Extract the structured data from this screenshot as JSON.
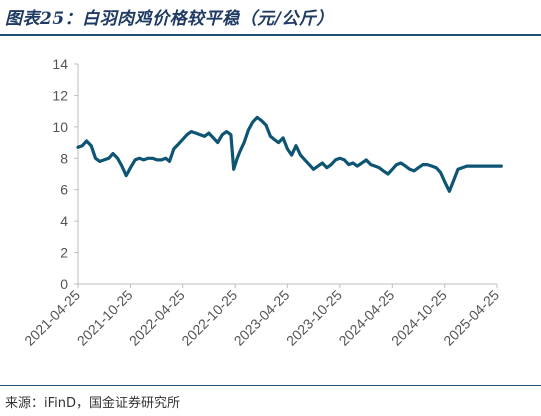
{
  "header": {
    "title": "图表25：白羽肉鸡价格较平稳（元/公斤）"
  },
  "footer": {
    "source": "来源：iFinD，国金证券研究所"
  },
  "colors": {
    "line": "#0e5473",
    "rule": "#1f4f73",
    "axis": "#bfbfbf"
  },
  "chart_data": {
    "type": "line",
    "title": "白羽肉鸡价格较平稳（元/公斤）",
    "ylim": [
      0,
      14
    ],
    "yticks": [
      "0",
      "2",
      "4",
      "6",
      "8",
      "10",
      "12",
      "14"
    ],
    "xticks": [
      "2021-04-25",
      "2021-10-25",
      "2022-04-25",
      "2022-10-25",
      "2023-04-25",
      "2023-10-25",
      "2024-04-25",
      "2024-10-25",
      "2025-04-25"
    ],
    "grid": false,
    "legend": "none",
    "series": [
      {
        "x": [
          "2021-04-25",
          "2021-05-10",
          "2021-05-25",
          "2021-06-10",
          "2021-06-25",
          "2021-07-10",
          "2021-07-25",
          "2021-08-10",
          "2021-08-25",
          "2021-09-10",
          "2021-09-25",
          "2021-10-10",
          "2021-10-25",
          "2021-11-10",
          "2021-11-25",
          "2021-12-10",
          "2021-12-25",
          "2022-01-10",
          "2022-01-25",
          "2022-02-10",
          "2022-02-25",
          "2022-03-10",
          "2022-03-25",
          "2022-04-10",
          "2022-04-25",
          "2022-05-10",
          "2022-05-25",
          "2022-06-10",
          "2022-06-25",
          "2022-07-10",
          "2022-07-25",
          "2022-08-10",
          "2022-08-25",
          "2022-09-10",
          "2022-09-25",
          "2022-10-10",
          "2022-10-20",
          "2022-11-01",
          "2022-11-10",
          "2022-11-25",
          "2022-12-10",
          "2022-12-25",
          "2023-01-10",
          "2023-01-25",
          "2023-02-10",
          "2023-02-25",
          "2023-03-10",
          "2023-03-25",
          "2023-04-10",
          "2023-04-25",
          "2023-05-10",
          "2023-05-25",
          "2023-06-10",
          "2023-06-25",
          "2023-07-10",
          "2023-07-25",
          "2023-08-10",
          "2023-08-25",
          "2023-09-10",
          "2023-09-25",
          "2023-10-10",
          "2023-10-25",
          "2023-11-10",
          "2023-11-25",
          "2023-12-10",
          "2023-12-25",
          "2024-01-10",
          "2024-01-25",
          "2024-02-10",
          "2024-02-25",
          "2024-03-10",
          "2024-03-25",
          "2024-04-10",
          "2024-04-25",
          "2024-05-10",
          "2024-05-25",
          "2024-06-10",
          "2024-06-25",
          "2024-07-10",
          "2024-07-25",
          "2024-08-10",
          "2024-08-25",
          "2024-09-10",
          "2024-09-25",
          "2024-10-10",
          "2024-10-25",
          "2024-11-10",
          "2024-11-25",
          "2024-12-10",
          "2024-12-25",
          "2025-01-10",
          "2025-01-25",
          "2025-02-10",
          "2025-02-25",
          "2025-03-10",
          "2025-03-25",
          "2025-04-10",
          "2025-04-25",
          "2025-05-10"
        ],
        "values": [
          8.7,
          8.8,
          9.1,
          8.8,
          8.0,
          7.8,
          7.9,
          8.0,
          8.3,
          8.0,
          7.5,
          6.9,
          7.4,
          7.9,
          8.0,
          7.9,
          8.0,
          8.0,
          7.9,
          7.9,
          8.0,
          7.8,
          8.6,
          8.9,
          9.2,
          9.5,
          9.7,
          9.6,
          9.5,
          9.4,
          9.6,
          9.3,
          9.0,
          9.5,
          9.7,
          9.5,
          7.3,
          8.0,
          8.4,
          9.0,
          9.8,
          10.3,
          10.6,
          10.4,
          10.1,
          9.4,
          9.2,
          9.0,
          9.3,
          8.6,
          8.2,
          8.8,
          8.2,
          7.9,
          7.6,
          7.3,
          7.5,
          7.7,
          7.4,
          7.6,
          7.9,
          8.0,
          7.9,
          7.6,
          7.7,
          7.5,
          7.7,
          7.9,
          7.6,
          7.5,
          7.4,
          7.2,
          7.0,
          7.3,
          7.6,
          7.7,
          7.5,
          7.3,
          7.2,
          7.4,
          7.6,
          7.6,
          7.5,
          7.4,
          7.1,
          6.5,
          5.9,
          6.6,
          7.3,
          7.4,
          7.5,
          7.5,
          7.5,
          7.5,
          7.5,
          7.5,
          7.5,
          7.5,
          7.5
        ]
      }
    ]
  }
}
